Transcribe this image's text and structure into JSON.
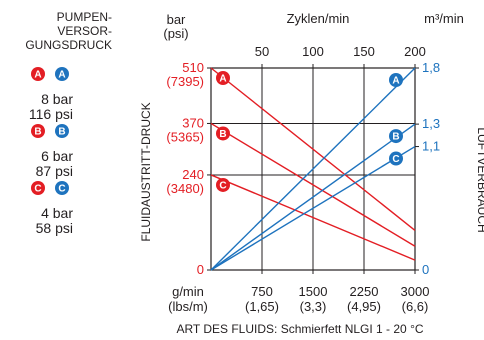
{
  "colors": {
    "red": "#e31e24",
    "blue": "#1e73be",
    "text": "#231f20"
  },
  "supply": {
    "heading": [
      "PUMPEN-",
      "VERSOR-",
      "GUNGSDRUCK"
    ],
    "entries": [
      {
        "letter": "A",
        "bar": "8 bar",
        "psi": "116 psi"
      },
      {
        "letter": "B",
        "bar": "6 bar",
        "psi": "87 psi"
      },
      {
        "letter": "C",
        "bar": "4 bar",
        "psi": "58 psi"
      }
    ]
  },
  "chart_data": {
    "type": "line",
    "footer": "ART DES FLUIDS: Schmierfett NLGI 1 - 20 °C",
    "left_axis": {
      "label": "FLUIDAUSTRITT-DRUCK",
      "unit_top": "bar",
      "unit_top2": "(psi)",
      "ticks": [
        {
          "value": 0,
          "bar": "0",
          "psi": ""
        },
        {
          "value": 240,
          "bar": "240",
          "psi": "(3480)"
        },
        {
          "value": 370,
          "bar": "370",
          "psi": "(5365)"
        },
        {
          "value": 510,
          "bar": "510",
          "psi": "(7395)"
        }
      ],
      "range": [
        0,
        510
      ]
    },
    "right_axis": {
      "label": "LUFTVERBRAUCH",
      "unit": "m³/min",
      "ticks": [
        {
          "value": 0,
          "label": "0"
        },
        {
          "value": 1.1,
          "label": "1,1"
        },
        {
          "value": 1.3,
          "label": "1,3"
        },
        {
          "value": 1.8,
          "label": "1,8"
        }
      ],
      "range": [
        0,
        1.8
      ]
    },
    "top_axis": {
      "label": "Zyklen/min",
      "ticks": [
        {
          "value": 50,
          "label": "50"
        },
        {
          "value": 100,
          "label": "100"
        },
        {
          "value": 150,
          "label": "150"
        },
        {
          "value": 200,
          "label": "200"
        }
      ],
      "range": [
        0,
        200
      ]
    },
    "bottom_axis": {
      "unit_top": "g/min",
      "unit_bottom": "(lbs/m)",
      "ticks": [
        {
          "value": 750,
          "label": "750",
          "sub": "(1,65)"
        },
        {
          "value": 1500,
          "label": "1500",
          "sub": "(3,3)"
        },
        {
          "value": 2250,
          "label": "2250",
          "sub": "(4,95)"
        },
        {
          "value": 3000,
          "label": "3000",
          "sub": "(6,6)"
        }
      ],
      "range": [
        0,
        3000
      ]
    },
    "pressure_series": [
      {
        "name": "A",
        "color": "#e31e24",
        "points": [
          [
            0,
            510
          ],
          [
            3000,
            100
          ]
        ]
      },
      {
        "name": "B",
        "color": "#e31e24",
        "points": [
          [
            0,
            370
          ],
          [
            3000,
            60
          ]
        ]
      },
      {
        "name": "C",
        "color": "#e31e24",
        "points": [
          [
            0,
            240
          ],
          [
            3000,
            25
          ]
        ]
      }
    ],
    "air_series": [
      {
        "name": "A",
        "color": "#1e73be",
        "points": [
          [
            0,
            0
          ],
          [
            3000,
            1.8
          ]
        ]
      },
      {
        "name": "B",
        "color": "#1e73be",
        "points": [
          [
            0,
            0
          ],
          [
            3000,
            1.3
          ]
        ]
      },
      {
        "name": "C",
        "color": "#1e73be",
        "points": [
          [
            0,
            0
          ],
          [
            3000,
            1.1
          ]
        ]
      }
    ],
    "grid": true
  }
}
